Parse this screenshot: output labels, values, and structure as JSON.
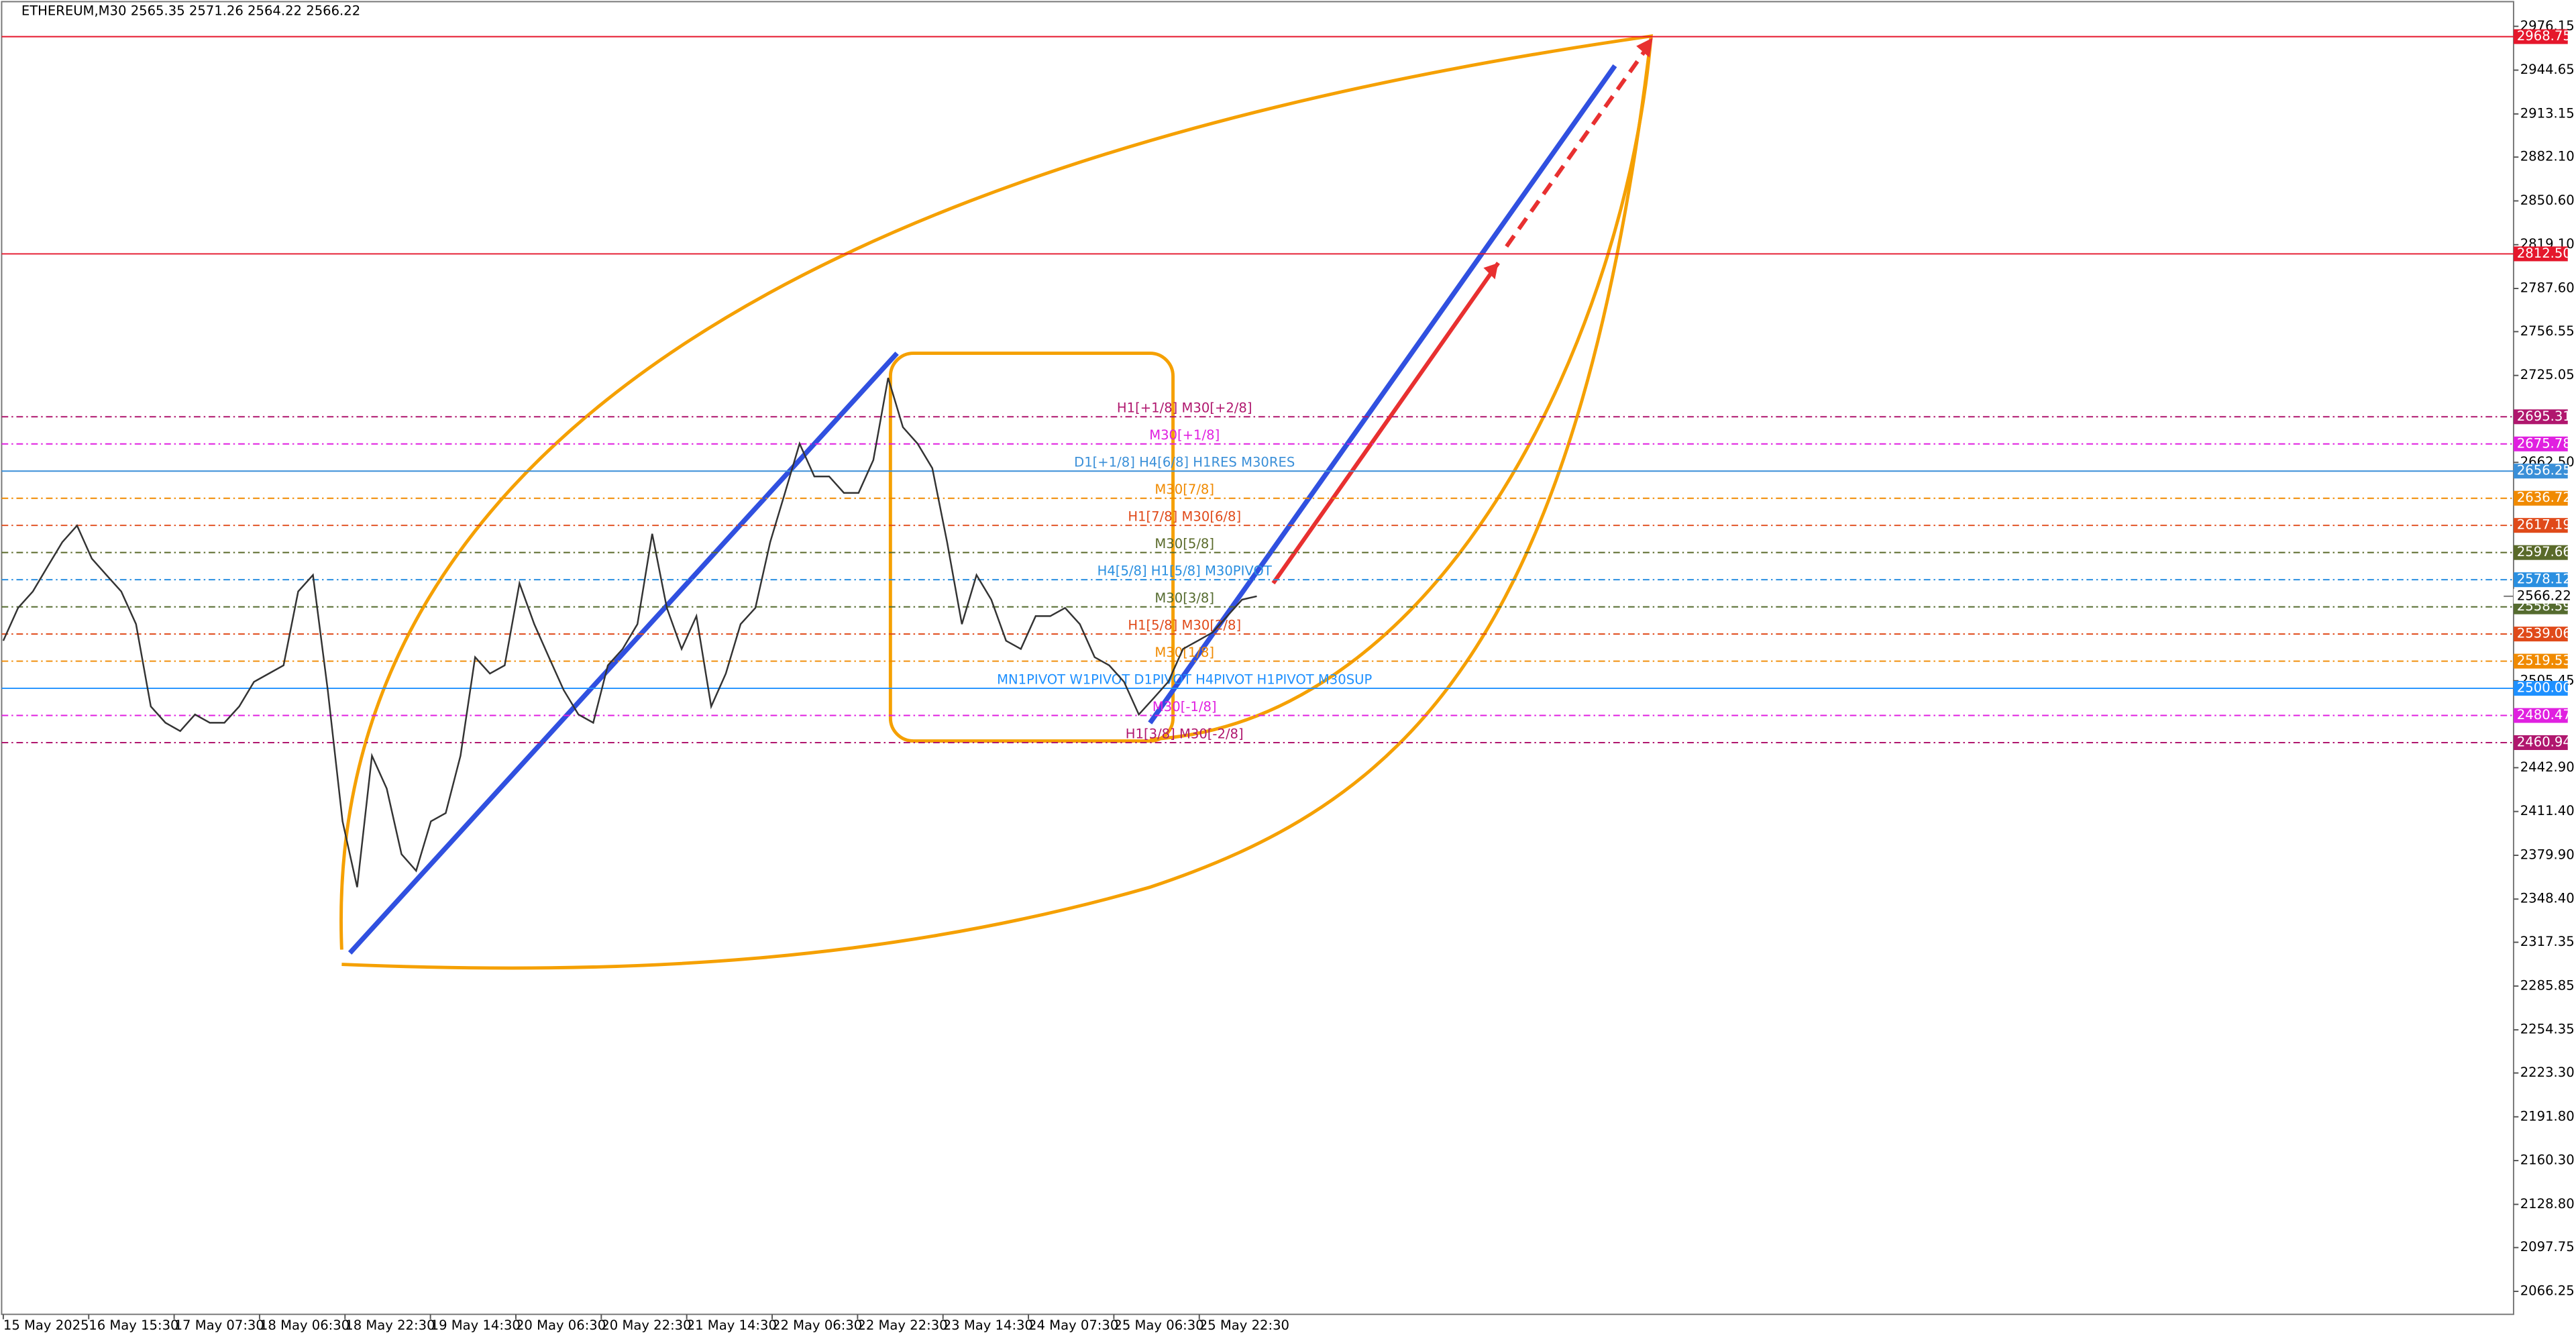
{
  "chart_data": {
    "type": "line",
    "title": "ETHEREUM,M30  2565.35 2571.26 2564.22 2566.22",
    "ylim": [
      2049.7,
      2995.1
    ],
    "yticks": [
      2976.15,
      2944.65,
      2913.15,
      {
        "value": 2882.1,
        "label": "2882.10"
      },
      {
        "value": 2850.6,
        "label": "2850.60"
      },
      {
        "value": 2819.1,
        "label": "2819.10"
      },
      {
        "value": 2787.6,
        "label": "2787.60"
      },
      2756.55,
      2725.05,
      {
        "value": 2662.5,
        "label": "2662.50"
      },
      2505.45,
      {
        "value": 2442.9,
        "label": "2442.90"
      },
      {
        "value": 2411.4,
        "label": "2411.40"
      },
      {
        "value": 2379.9,
        "label": "2379.90"
      },
      {
        "value": 2348.4,
        "label": "2348.40"
      },
      2317.35,
      2285.85,
      2254.35,
      {
        "value": 2223.3,
        "label": "2223.30"
      },
      {
        "value": 2191.8,
        "label": "2191.80"
      },
      {
        "value": 2160.3,
        "label": "2160.30"
      },
      {
        "value": 2128.8,
        "label": "2128.80"
      },
      2097.75,
      2066.25
    ],
    "categories": [
      "15 May 2025",
      "16 May 15:30",
      "17 May 07:30",
      "18 May 06:30",
      "18 May 22:30",
      "19 May 14:30",
      "20 May 06:30",
      "20 May 22:30",
      "21 May 14:30",
      "22 May 06:30",
      "22 May 22:30",
      "23 May 14:30",
      "24 May 07:30",
      "25 May 06:30",
      "25 May 22:30"
    ],
    "price": {
      "color": "#333333",
      "values": [
        2534.2,
        2557.9,
        2569.7,
        2587.4,
        2605.1,
        2617.0,
        2593.3,
        2581.5,
        2569.7,
        2546.1,
        2487.0,
        2475.2,
        2469.2,
        2481.1,
        2475.2,
        2475.2,
        2487.0,
        2504.7,
        2510.6,
        2516.5,
        2569.7,
        2581.5,
        2498.8,
        2404.3,
        2357.0,
        2451.5,
        2427.9,
        2380.7,
        2368.8,
        2404.3,
        2410.2,
        2451.5,
        2522.4,
        2510.6,
        2516.5,
        2575.6,
        2546.1,
        2522.4,
        2498.8,
        2481.1,
        2475.2,
        2516.5,
        2528.3,
        2546.1,
        2611.1,
        2557.9,
        2528.3,
        2552.0,
        2487.0,
        2510.6,
        2546.1,
        2557.9,
        2605.1,
        2640.6,
        2676.0,
        2652.4,
        2652.4,
        2640.6,
        2640.6,
        2664.2,
        2723.3,
        2687.9,
        2676.0,
        2658.3,
        2605.1,
        2546.1,
        2581.5,
        2563.8,
        2534.2,
        2528.3,
        2552.0,
        2552.0,
        2557.9,
        2546.1,
        2522.4,
        2516.5,
        2504.7,
        2481.1,
        2492.9,
        2504.7,
        2528.3,
        2534.2,
        2540.2,
        2552.0,
        2563.8,
        2566.22
      ]
    },
    "bid": 2566.22,
    "levels": [
      {
        "value": 2968.75,
        "label": "2968.75",
        "color": "#e5172c",
        "solid": true
      },
      {
        "value": 2812.5,
        "label": "2812.50",
        "color": "#e5172c",
        "solid": true
      },
      {
        "value": 2695.31,
        "label": "2695.31",
        "color": "#b0176e",
        "name": "H1[+1/8] M30[+2/8]"
      },
      {
        "value": 2675.78,
        "label": "2675.78",
        "color": "#e020e0",
        "name": "M30[+1/8]"
      },
      {
        "value": 2656.25,
        "label": "2656.25",
        "color": "#3a8fd8",
        "solid": true,
        "name": "D1[+1/8] H4[6/8] H1RES M30RES"
      },
      {
        "value": 2636.72,
        "label": "2636.72",
        "color": "#f08a00",
        "name": "M30[7/8]"
      },
      {
        "value": 2617.19,
        "label": "2617.19",
        "color": "#e04a1a",
        "name": "H1[7/8] M30[6/8]"
      },
      {
        "value": 2597.66,
        "label": "2597.66",
        "color": "#5a6a2a",
        "name": "M30[5/8]"
      },
      {
        "value": 2578.12,
        "label": "2578.12",
        "color": "#2a8fe0",
        "name": "H4[5/8] H1[5/8] M30PIVOT"
      },
      {
        "value": 2558.59,
        "label": "2558.59",
        "color": "#556b2f",
        "name": "M30[3/8]"
      },
      {
        "value": 2539.06,
        "label": "2539.06",
        "color": "#e04a1a",
        "name": "H1[5/8] M30[2/8]"
      },
      {
        "value": 2519.53,
        "label": "2519.53",
        "color": "#f08a00",
        "name": "M30[1/8]"
      },
      {
        "value": 2500,
        "label": "2500.00",
        "color": "#1e90ff",
        "solid": true,
        "name": "MN1PIVOT W1PIVOT D1PIVOT H4PIVOT H1PIVOT M30SUP"
      },
      {
        "value": 2480.47,
        "label": "2480.47",
        "color": "#e020e0",
        "name": "M30[-1/8]"
      },
      {
        "value": 2460.94,
        "label": "2460.94",
        "color": "#b0176e",
        "name": "H1[3/8] M30[-2/8]"
      }
    ]
  }
}
